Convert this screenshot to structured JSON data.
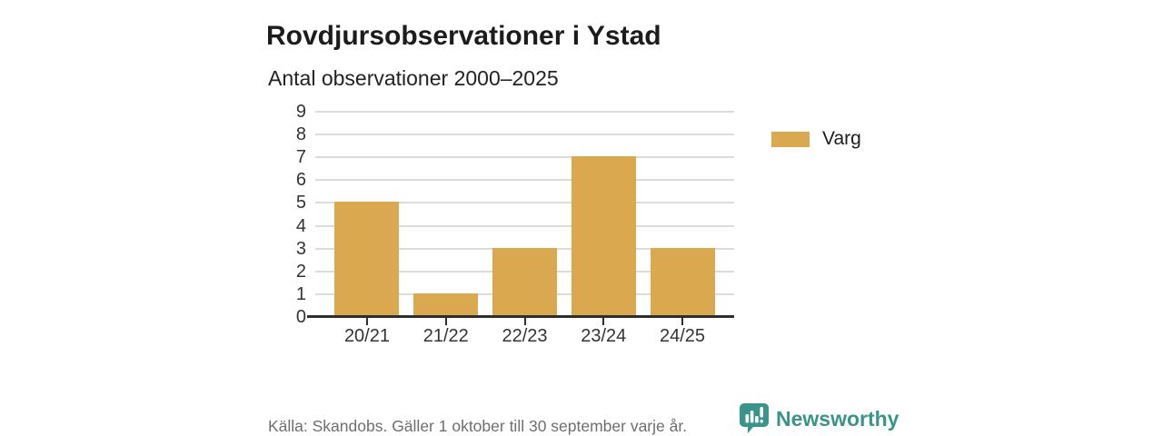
{
  "header": {
    "title": "Rovdjursobservationer i Ystad",
    "subtitle": "Antal observationer 2000–2025"
  },
  "chart_data": {
    "type": "bar",
    "title": "Rovdjursobservationer i Ystad",
    "subtitle": "Antal observationer 2000–2025",
    "categories": [
      "20/21",
      "21/22",
      "22/23",
      "23/24",
      "24/25"
    ],
    "series": [
      {
        "name": "Varg",
        "values": [
          5,
          1,
          3,
          7,
          3
        ],
        "color": "#D9A84F"
      }
    ],
    "ylim": [
      0,
      9
    ],
    "yticks": [
      0,
      1,
      2,
      3,
      4,
      5,
      6,
      7,
      8,
      9
    ],
    "xlabel": "",
    "ylabel": "",
    "grid": "horizontal",
    "legend_position": "right"
  },
  "legend": {
    "items": [
      {
        "label": "Varg",
        "color": "#D9A84F"
      }
    ]
  },
  "footer": {
    "source": "Källa: Skandobs. Gäller 1 oktober till 30 september varje år.",
    "brand": "Newsworthy"
  },
  "icons": {
    "logo": "newsworthy-bar-chart-speech-bubble"
  },
  "colors": {
    "bar": "#D9A84F",
    "axis": "#2E2E2E",
    "gridline": "#DCDCDC",
    "tick_label": "#333333",
    "title_text": "#1C1C1C",
    "footer_text": "#6E6E6E",
    "brand_teal": "#3A948C",
    "background": "#FFFFFF"
  }
}
